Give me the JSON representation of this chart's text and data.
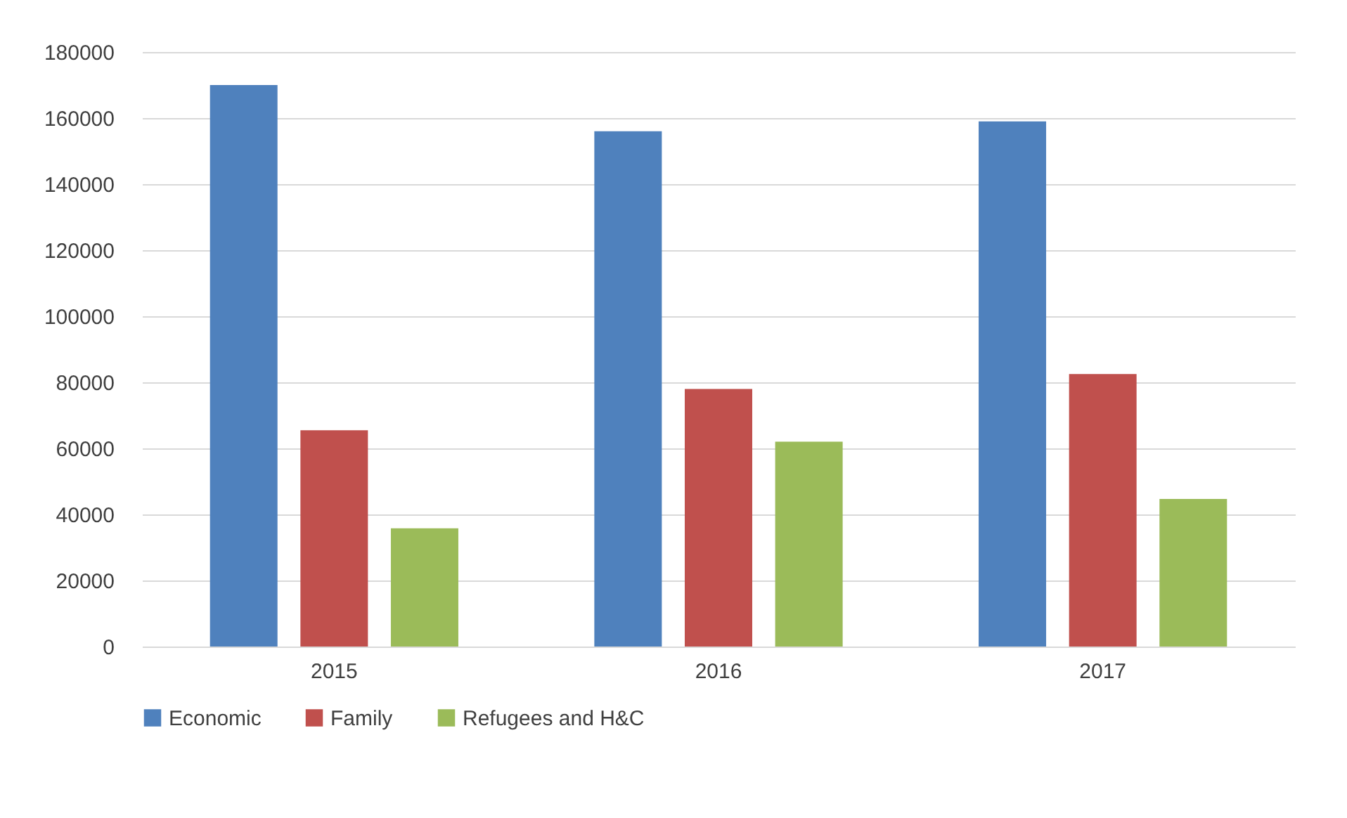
{
  "chart_data": {
    "type": "bar",
    "categories": [
      "2015",
      "2016",
      "2017"
    ],
    "series": [
      {
        "name": "Economic",
        "color": "#4f81bd",
        "values": [
          170000,
          156000,
          159000
        ]
      },
      {
        "name": "Family",
        "color": "#c0504d",
        "values": [
          65500,
          78000,
          82500
        ]
      },
      {
        "name": "Refugees and H&C",
        "color": "#9bbb59",
        "values": [
          35800,
          62000,
          44700
        ]
      }
    ],
    "ylim": [
      0,
      180000
    ],
    "yticks": [
      0,
      20000,
      40000,
      60000,
      80000,
      100000,
      120000,
      140000,
      160000,
      180000
    ],
    "grid": "y",
    "legend": "bottom"
  }
}
